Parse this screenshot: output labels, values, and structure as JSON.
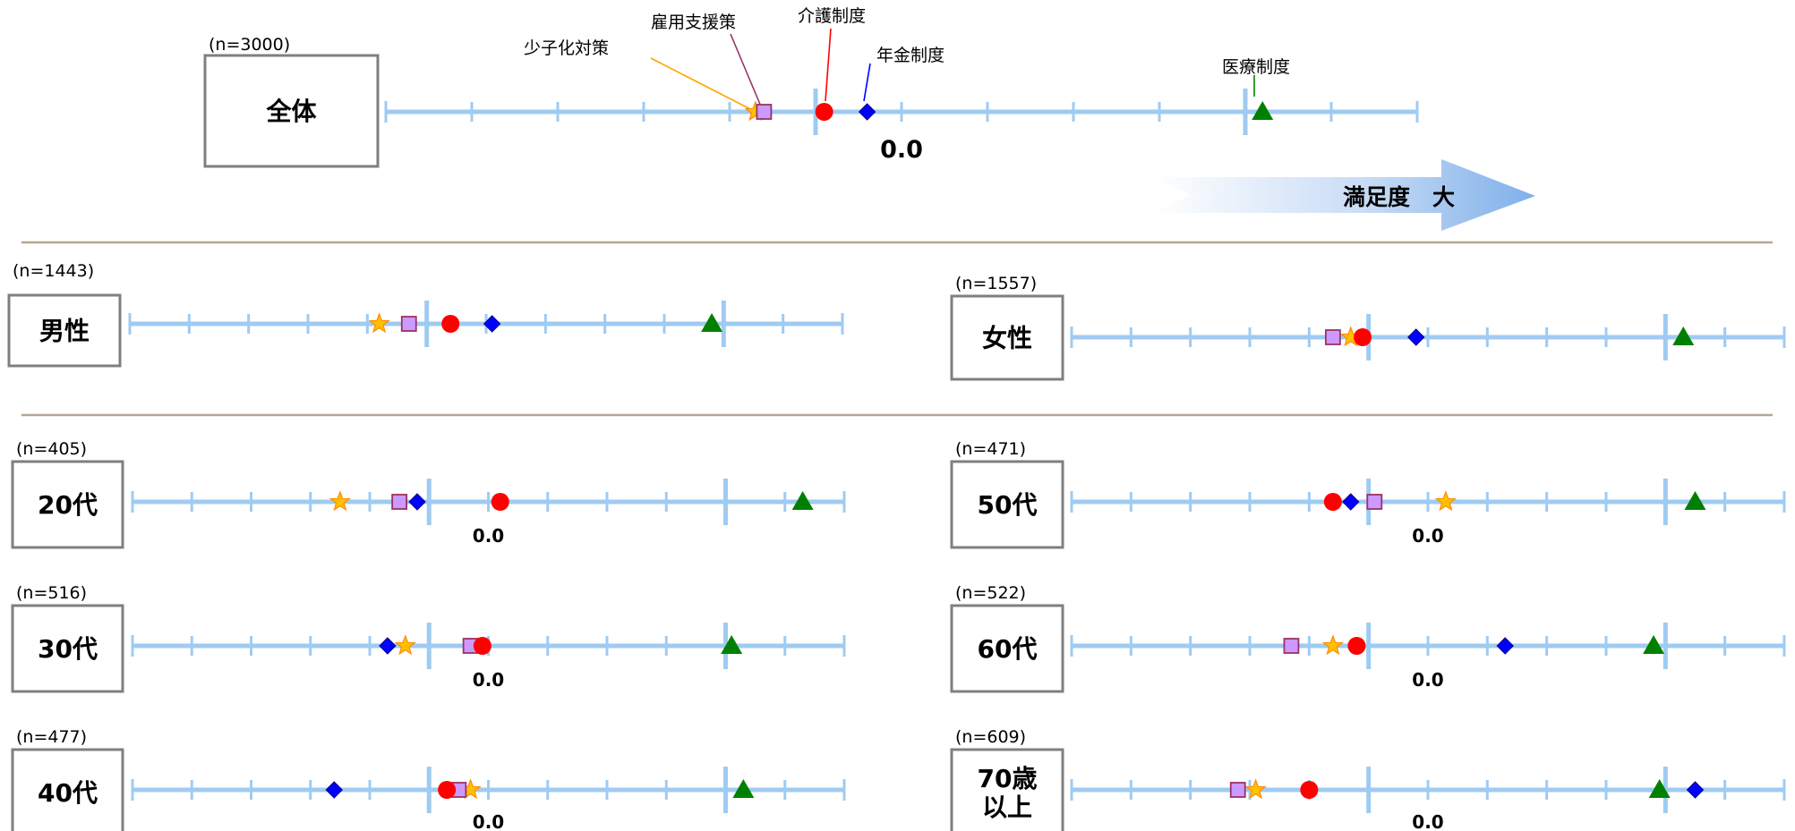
{
  "colors": {
    "axis": "#9fcbf2",
    "box_border": "#7f7f7f",
    "divider": "#b3a790",
    "arrow": "#7fb0ea",
    "nenkin": "#0000ff",
    "kaigo": "#ff0000",
    "iryo": "#008000",
    "koyo": "#cc99ff",
    "koyo_border": "#993366",
    "shoshi": "#ffc000",
    "shoshi_border": "#ff8c00"
  },
  "legend_labels": {
    "shoshi": "少子化対策",
    "koyo": "雇用支援策",
    "kaigo": "介護制度",
    "nenkin": "年金制度",
    "iryo": "医療制度"
  },
  "arrow_label": "満足度　大",
  "chart_data": {
    "type": "scatter",
    "tick_step": 0.1,
    "zero_label": "0.0",
    "series": [
      {
        "name": "年金制度",
        "key": "nenkin",
        "marker": "diamond"
      },
      {
        "name": "介護制度",
        "key": "kaigo",
        "marker": "circle"
      },
      {
        "name": "医療制度",
        "key": "iryo",
        "marker": "triangle"
      },
      {
        "name": "雇用支援策",
        "key": "koyo",
        "marker": "square"
      },
      {
        "name": "少子化対策",
        "key": "shoshi",
        "marker": "star"
      }
    ],
    "panels": [
      {
        "id": "all",
        "label": "全体",
        "n": "(n=3000)",
        "xlim": [
          -0.6,
          0.6
        ],
        "show_zero": true,
        "values": {
          "nenkin": -0.04,
          "kaigo": -0.09,
          "iryo": 0.42,
          "koyo": -0.16,
          "shoshi": -0.17
        }
      },
      {
        "id": "male",
        "label": "男性",
        "n": "(n=1443)",
        "xlim": [
          -0.6,
          0.6
        ],
        "show_zero": false,
        "values": {
          "nenkin": 0.01,
          "kaigo": -0.06,
          "iryo": 0.38,
          "koyo": -0.13,
          "shoshi": -0.18
        }
      },
      {
        "id": "female",
        "label": "女性",
        "n": "(n=1557)",
        "xlim": [
          -0.6,
          0.6
        ],
        "show_zero": false,
        "values": {
          "nenkin": -0.02,
          "kaigo": -0.11,
          "iryo": 0.43,
          "koyo": -0.16,
          "shoshi": -0.13
        }
      },
      {
        "id": "20s",
        "label": "20代",
        "n": "(n=405)",
        "xlim": [
          -0.6,
          0.6
        ],
        "show_zero": true,
        "values": {
          "nenkin": -0.12,
          "kaigo": 0.02,
          "iryo": 0.53,
          "koyo": -0.15,
          "shoshi": -0.25
        }
      },
      {
        "id": "50s",
        "label": "50代",
        "n": "(n=471)",
        "xlim": [
          -0.6,
          0.6
        ],
        "show_zero": true,
        "values": {
          "nenkin": -0.13,
          "kaigo": -0.16,
          "iryo": 0.45,
          "koyo": -0.09,
          "shoshi": 0.03
        }
      },
      {
        "id": "30s",
        "label": "30代",
        "n": "(n=516)",
        "xlim": [
          -0.6,
          0.6
        ],
        "show_zero": true,
        "values": {
          "nenkin": -0.17,
          "kaigo": -0.01,
          "iryo": 0.41,
          "koyo": -0.03,
          "shoshi": -0.14
        }
      },
      {
        "id": "60s",
        "label": "60代",
        "n": "(n=522)",
        "xlim": [
          -0.6,
          0.6
        ],
        "show_zero": true,
        "values": {
          "nenkin": 0.13,
          "kaigo": -0.12,
          "iryo": 0.38,
          "koyo": -0.23,
          "shoshi": -0.16
        }
      },
      {
        "id": "40s",
        "label": "40代",
        "n": "(n=477)",
        "xlim": [
          -0.6,
          0.6
        ],
        "show_zero": true,
        "values": {
          "nenkin": -0.26,
          "kaigo": -0.07,
          "iryo": 0.43,
          "koyo": -0.05,
          "shoshi": -0.03
        }
      },
      {
        "id": "70s",
        "label": "70歳\n以上",
        "n": "(n=609)",
        "xlim": [
          -0.6,
          0.6
        ],
        "show_zero": true,
        "values": {
          "nenkin": 0.45,
          "kaigo": -0.2,
          "iryo": 0.39,
          "koyo": -0.32,
          "shoshi": -0.29
        }
      }
    ]
  }
}
